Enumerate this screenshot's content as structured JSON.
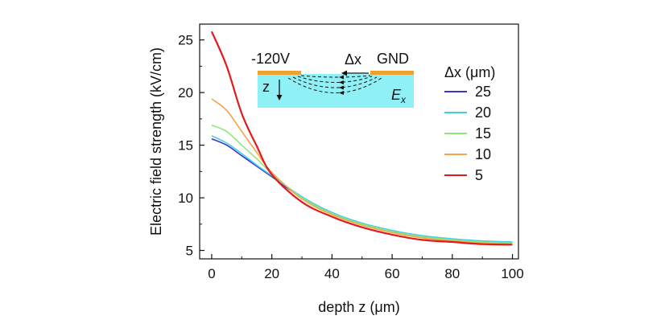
{
  "chart_data": {
    "type": "line",
    "title": "",
    "xlabel": "depth z (μm)",
    "ylabel": "Electric field strength (kV/cm)",
    "xlim": [
      -4,
      102
    ],
    "ylim": [
      4.2,
      26.5
    ],
    "xticks": [
      0,
      20,
      40,
      60,
      80,
      100
    ],
    "yticks": [
      5,
      10,
      15,
      20,
      25
    ],
    "legend_title": "Δx (μm)",
    "legend_position": "top-right",
    "x": [
      0,
      5,
      10,
      15,
      20,
      30,
      40,
      50,
      60,
      70,
      80,
      90,
      100
    ],
    "series": [
      {
        "name": "25",
        "color": "#3b34c8",
        "values": [
          15.6,
          15.0,
          14.0,
          13.0,
          12.0,
          10.0,
          8.6,
          7.5,
          6.8,
          6.3,
          6.0,
          5.8,
          5.7
        ]
      },
      {
        "name": "20",
        "color": "#3fd0e6",
        "values": [
          15.9,
          15.2,
          14.2,
          13.1,
          12.1,
          10.1,
          8.6,
          7.6,
          6.9,
          6.4,
          6.1,
          5.9,
          5.8
        ]
      },
      {
        "name": "15",
        "color": "#8fe878",
        "values": [
          16.9,
          16.3,
          15.0,
          13.7,
          12.3,
          10.0,
          8.5,
          7.5,
          6.8,
          6.3,
          6.0,
          5.8,
          5.7
        ]
      },
      {
        "name": "10",
        "color": "#f5a44a",
        "values": [
          19.4,
          18.3,
          16.3,
          14.3,
          12.4,
          9.9,
          8.4,
          7.4,
          6.7,
          6.2,
          5.9,
          5.7,
          5.6
        ]
      },
      {
        "name": "5",
        "color": "#e11b1b",
        "values": [
          25.8,
          22.5,
          18.0,
          14.9,
          12.2,
          9.6,
          8.2,
          7.2,
          6.5,
          6.0,
          5.8,
          5.6,
          5.55
        ]
      }
    ],
    "inset": {
      "left_label": "-120V",
      "right_label": "GND",
      "gap_label": "Δx",
      "depth_label": "z",
      "field_label": "E",
      "field_subscript": "x",
      "electrode_color": "#f0a030",
      "substrate_color": "#8ff0f5"
    }
  }
}
